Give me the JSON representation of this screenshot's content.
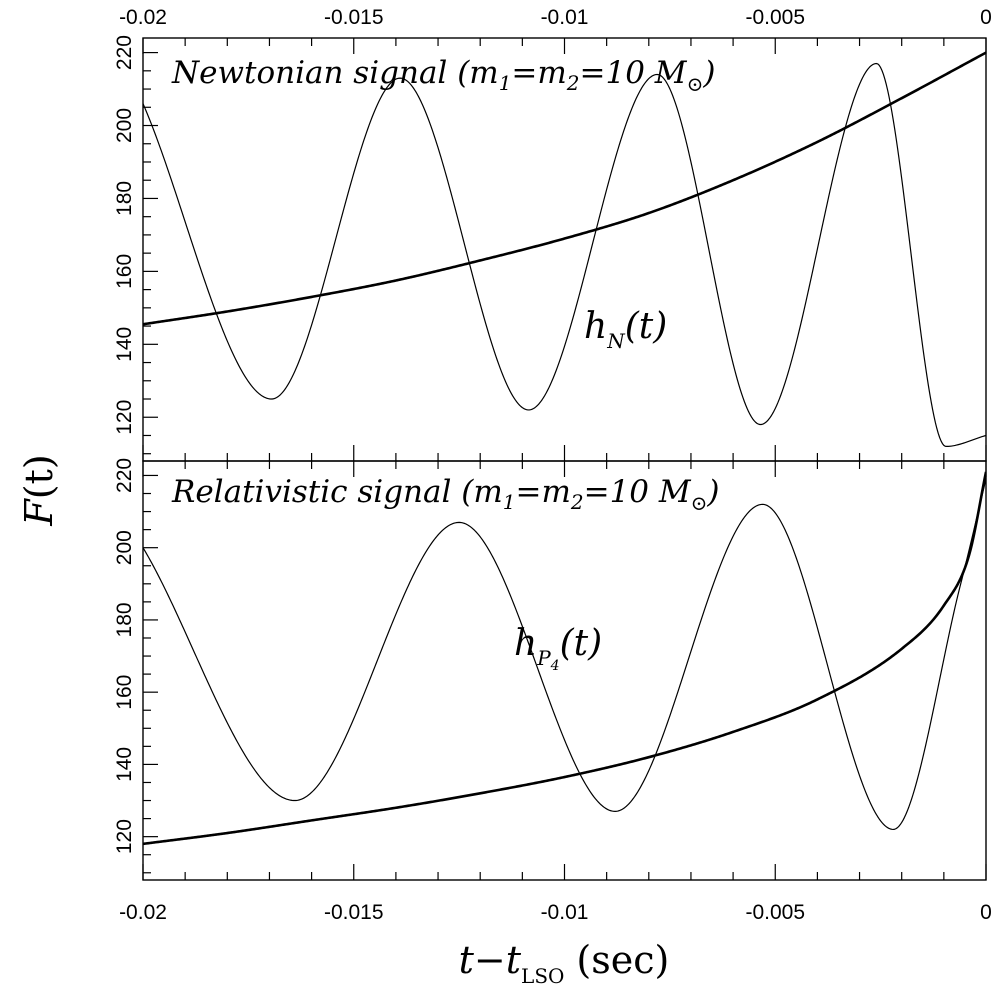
{
  "axes": {
    "ylabel_main": "F",
    "ylabel_arg": "(t)",
    "xlabel_main": "t−t",
    "xlabel_sub": "LSO",
    "xlabel_unit": "(sec)"
  },
  "panels": [
    {
      "title_main": "Newtonian signal (m",
      "title_sub1": "1",
      "title_mid": "=m",
      "title_sub2": "2",
      "title_tail": "=10 M",
      "title_sun": "⊙",
      "title_close": ")",
      "curve_label_main": "h",
      "curve_label_sub": "N",
      "curve_label_arg": "(t)"
    },
    {
      "title_main": "Relativistic signal (m",
      "title_sub1": "1",
      "title_mid": "=m",
      "title_sub2": "2",
      "title_tail": "=10 M",
      "title_sun": "⊙",
      "title_close": ")",
      "curve_label_main": "h",
      "curve_label_sub": "P",
      "curve_label_subsub": "4",
      "curve_label_arg": "(t)"
    }
  ],
  "chart_data": [
    {
      "type": "line",
      "panel": "top",
      "title": "Newtonian signal (m1=m2=10 M⊙)",
      "xlabel": "t−tLSO (sec)",
      "ylabel": "F(t)",
      "xlim": [
        -0.02,
        0
      ],
      "ylim": [
        108,
        224
      ],
      "xticks": [
        -0.02,
        -0.015,
        -0.01,
        -0.005,
        0
      ],
      "xtick_labels": [
        "-0.02",
        "-0.015",
        "-0.01",
        "-0.005",
        "0"
      ],
      "yticks": [
        120,
        140,
        160,
        180,
        200,
        220
      ],
      "ytick_labels": [
        "120",
        "140",
        "160",
        "180",
        "200",
        "220"
      ],
      "series": [
        {
          "kind": "frequency",
          "style": "thick",
          "x": [
            -0.02,
            -0.018,
            -0.016,
            -0.014,
            -0.012,
            -0.01,
            -0.008,
            -0.006,
            -0.004,
            -0.002,
            0
          ],
          "y": [
            145.5,
            149.0,
            153.0,
            157.5,
            163.0,
            169.0,
            176.0,
            185.0,
            195.5,
            207.5,
            220.0
          ]
        },
        {
          "kind": "waveform",
          "style": "thin",
          "x": [
            -0.02,
            -0.01695,
            -0.0139,
            -0.01085,
            -0.0078,
            -0.00535,
            -0.0026,
            -0.00095,
            0
          ],
          "y": [
            206,
            125,
            213,
            122,
            214,
            118,
            217,
            112,
            115
          ]
        }
      ]
    },
    {
      "type": "line",
      "panel": "bottom",
      "title": "Relativistic signal (m1=m2=10 M⊙)",
      "xlabel": "t−tLSO (sec)",
      "ylabel": "F(t)",
      "xlim": [
        -0.02,
        0
      ],
      "ylim": [
        108,
        224
      ],
      "xticks": [
        -0.02,
        -0.015,
        -0.01,
        -0.005,
        0
      ],
      "xtick_labels": [
        "-0.02",
        "-0.015",
        "-0.01",
        "-0.005",
        "0"
      ],
      "yticks": [
        120,
        140,
        160,
        180,
        200,
        220
      ],
      "ytick_labels": [
        "120",
        "140",
        "160",
        "180",
        "200",
        "220"
      ],
      "series": [
        {
          "kind": "frequency",
          "style": "thick",
          "x": [
            -0.02,
            -0.018,
            -0.016,
            -0.014,
            -0.012,
            -0.01,
            -0.008,
            -0.006,
            -0.004,
            -0.002,
            -0.001,
            -0.0004,
            0
          ],
          "y": [
            118,
            121,
            124.5,
            128,
            132,
            136.5,
            142,
            149,
            158,
            172,
            184,
            198,
            221
          ]
        },
        {
          "kind": "waveform",
          "style": "thin",
          "x": [
            -0.02,
            -0.0164,
            -0.0125,
            -0.0088,
            -0.0053,
            -0.0022,
            -0.0006,
            0
          ],
          "y": [
            200,
            130,
            207,
            127,
            212,
            122,
            190,
            219
          ]
        }
      ]
    }
  ]
}
